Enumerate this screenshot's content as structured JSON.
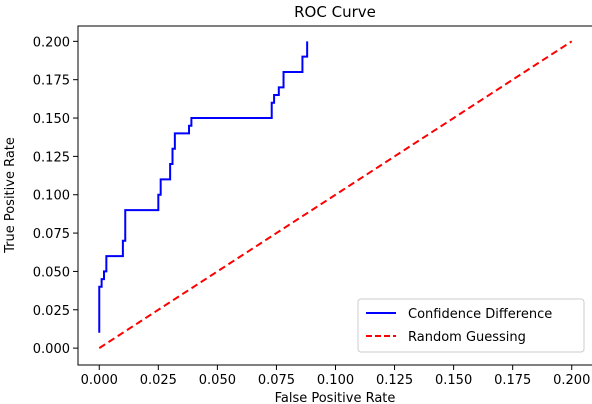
{
  "chart_data": {
    "type": "line",
    "title": "ROC Curve",
    "xlabel": "False Positive Rate",
    "ylabel": "True Positive Rate",
    "xlim": [
      -0.009,
      0.209
    ],
    "ylim": [
      -0.011,
      0.21
    ],
    "xticks": [
      "0.000",
      "0.025",
      "0.050",
      "0.075",
      "0.100",
      "0.125",
      "0.150",
      "0.175",
      "0.200"
    ],
    "yticks": [
      "0.000",
      "0.025",
      "0.050",
      "0.075",
      "0.100",
      "0.125",
      "0.150",
      "0.175",
      "0.200"
    ],
    "grid": false,
    "legend_position": "bottom-right",
    "series": [
      {
        "name": "Confidence Difference",
        "color": "#0000ff",
        "dash": "solid",
        "x": [
          0,
          0,
          0.001,
          0.001,
          0.002,
          0.002,
          0.003,
          0.003,
          0.01,
          0.01,
          0.011,
          0.011,
          0.025,
          0.025,
          0.026,
          0.026,
          0.03,
          0.03,
          0.031,
          0.031,
          0.032,
          0.032,
          0.038,
          0.038,
          0.039,
          0.039,
          0.073,
          0.073,
          0.074,
          0.074,
          0.076,
          0.076,
          0.078,
          0.078,
          0.086,
          0.086,
          0.088,
          0.088
        ],
        "y": [
          0.01,
          0.04,
          0.04,
          0.045,
          0.045,
          0.05,
          0.05,
          0.06,
          0.06,
          0.07,
          0.07,
          0.09,
          0.09,
          0.1,
          0.1,
          0.11,
          0.11,
          0.12,
          0.12,
          0.13,
          0.13,
          0.14,
          0.14,
          0.145,
          0.145,
          0.15,
          0.15,
          0.16,
          0.16,
          0.165,
          0.165,
          0.17,
          0.17,
          0.18,
          0.18,
          0.19,
          0.19,
          0.2
        ]
      },
      {
        "name": "Random Guessing",
        "color": "#ff0000",
        "dash": "dashed",
        "x": [
          0,
          0.2
        ],
        "y": [
          0,
          0.2
        ]
      }
    ]
  }
}
